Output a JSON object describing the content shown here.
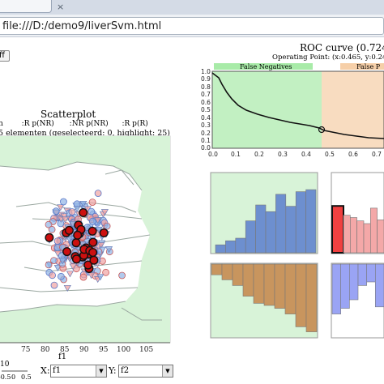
{
  "browser": {
    "tab_close": "×",
    "url": "file:///D:/demo9/liverSvm.html"
  },
  "controls": {
    "stop_label": "ff"
  },
  "scatter": {
    "title": "Scatterplot",
    "legend": [
      "n",
      ":R p(NR)",
      ":NR p(NR)",
      ":R p(R)"
    ],
    "subtitle": "5 elementen (geselecteerd: 0, highlight: 25)",
    "x_ticks": [
      "75",
      "80",
      "85",
      "90",
      "95",
      "100",
      "105"
    ],
    "x_label": "f1",
    "mini_ticks": [
      "-0.5",
      "0",
      "0.5"
    ],
    "mini_label": "10",
    "x_select_label": "X:",
    "x_select_value": "f1",
    "y_select_label": "Y:",
    "y_select_value": "f2"
  },
  "roc": {
    "title": "ROC curve (0.724 a",
    "operating_point": "Operating Point: (x:0.465, y:0.24138",
    "fn_label": "False Negatives",
    "fp_label": "False P",
    "y_ticks": [
      "1.0",
      "0.9",
      "0.8",
      "0.7",
      "0.6",
      "0.5",
      "0.4",
      "0.3",
      "0.2",
      "0.1",
      "0.0"
    ],
    "x_ticks": [
      "0.0",
      "0.1",
      "0.2",
      "0.3",
      "0.4",
      "0.5",
      "0.6",
      "0.7"
    ]
  },
  "histograms": {
    "top_left": [
      0.12,
      0.18,
      0.22,
      0.48,
      0.72,
      0.62,
      0.88,
      0.7,
      0.92,
      0.95
    ],
    "bottom_left": [
      0.15,
      0.22,
      0.3,
      0.45,
      0.55,
      0.58,
      0.62,
      0.7,
      0.88,
      0.95
    ],
    "top_right_highlight": 0.85,
    "top_right": [
      0.8,
      0.75,
      0.68,
      0.62,
      0.95,
      0.7
    ],
    "bottom_right": [
      0.7,
      0.62,
      0.5,
      0.3,
      0.25,
      0.6
    ]
  },
  "colors": {
    "nr_fill": "#90b4e6",
    "r_fill": "#f0a2a2",
    "highlight": "#cc1010",
    "region_green": "#d8f3d8",
    "fp_orange": "#f6cfa8",
    "hist_blue": "#6d8fcf",
    "hist_brown": "#c8955e",
    "hist_red": "#f04040"
  }
}
